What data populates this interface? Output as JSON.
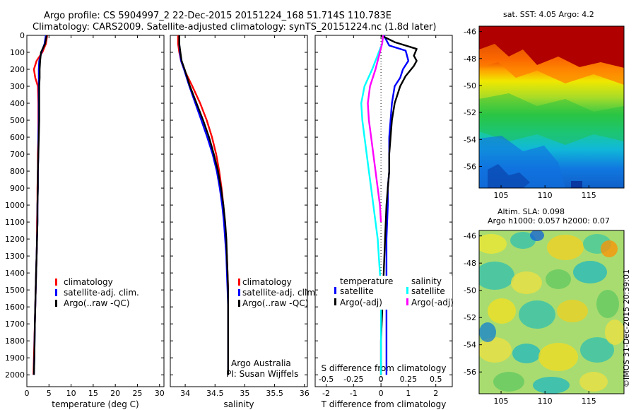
{
  "header": {
    "line1": "Argo profile: CS 5904997_2 22-Dec-2015 20151224_168 51.714S 110.783E",
    "line2": "Climatology: CARS2009. Satellite-adjusted climatology: synTS_20151224.nc (1.8d later)"
  },
  "legends": {
    "temperature": [
      "climatology",
      "satellite-adj. clim.",
      "Argo(..raw -QC)"
    ],
    "salinity": [
      "climatology",
      "satellite-adj. clim.",
      "Argo(..raw -QC)"
    ],
    "diff_temp_title": "temperature",
    "diff_sal_title": "salinity",
    "diff_temp_items": [
      "satellite",
      "Argo(-adj)"
    ],
    "diff_sal_items": [
      "satellite",
      "Argo(-adj)"
    ]
  },
  "credits": {
    "org": "Argo Australia",
    "pi": "PI: Susan Wijffels",
    "stamp": "©IMOS 31-Dec-2015 20:39:01"
  },
  "colors": {
    "climatology": "#ff0000",
    "satellite": "#0000ff",
    "argo": "#000000",
    "sal_satellite": "#00ffff",
    "sal_argo": "#ff00ff"
  },
  "chart_data": [
    {
      "type": "line",
      "panel": "temperature",
      "xlabel": "temperature (deg C)",
      "ylabel": "",
      "xlim": [
        0,
        31
      ],
      "ylim": [
        2070,
        0
      ],
      "xticks": [
        0,
        5,
        10,
        15,
        20,
        25,
        30
      ],
      "yticks": [
        0,
        100,
        200,
        300,
        400,
        500,
        600,
        700,
        800,
        900,
        1000,
        1100,
        1200,
        1300,
        1400,
        1500,
        1600,
        1700,
        1800,
        1900,
        2000
      ],
      "series": [
        {
          "name": "climatology",
          "color": "#ff0000",
          "x": [
            4.6,
            4.3,
            3.5,
            2.2,
            1.6,
            1.9,
            2.5,
            2.6,
            2.6,
            2.6,
            2.5,
            2.5,
            2.4,
            2.4,
            2.3,
            2.3,
            2.2,
            2.1,
            2.0,
            1.9,
            1.8,
            1.6,
            1.5
          ],
          "y": [
            0,
            50,
            100,
            150,
            200,
            250,
            300,
            400,
            500,
            600,
            700,
            800,
            900,
            1000,
            1100,
            1200,
            1300,
            1400,
            1500,
            1600,
            1700,
            1900,
            2000
          ]
        },
        {
          "name": "satellite-adj. clim.",
          "color": "#0000ff",
          "x": [
            4.3,
            4.0,
            3.3,
            2.8,
            2.7,
            2.7,
            2.7,
            2.7,
            2.7,
            2.6,
            2.6,
            2.5,
            2.5,
            2.4,
            2.4,
            2.3,
            2.2,
            2.1,
            2.0,
            1.9,
            1.8,
            1.7,
            1.6
          ],
          "y": [
            0,
            50,
            100,
            150,
            200,
            250,
            300,
            400,
            500,
            600,
            700,
            800,
            900,
            1000,
            1100,
            1200,
            1300,
            1400,
            1500,
            1600,
            1700,
            1900,
            2000
          ]
        },
        {
          "name": "Argo(..raw -QC)",
          "color": "#000000",
          "x": [
            4.5,
            4.1,
            3.2,
            3.0,
            2.9,
            2.9,
            2.8,
            2.8,
            2.8,
            2.7,
            2.6,
            2.5,
            2.5,
            2.4,
            2.4,
            2.3,
            2.2,
            2.1,
            2.0,
            1.9,
            1.8,
            1.7,
            1.6
          ],
          "y": [
            0,
            50,
            100,
            150,
            200,
            250,
            300,
            400,
            500,
            600,
            700,
            800,
            900,
            1000,
            1100,
            1200,
            1300,
            1400,
            1500,
            1600,
            1700,
            1900,
            2000
          ]
        }
      ]
    },
    {
      "type": "line",
      "panel": "salinity",
      "xlabel": "salinity",
      "ylabel": "",
      "xlim": [
        33.75,
        36.05
      ],
      "ylim": [
        2070,
        0
      ],
      "xticks": [
        34,
        34.5,
        35,
        35.5,
        36
      ],
      "series": [
        {
          "name": "climatology",
          "color": "#ff0000",
          "x": [
            33.88,
            33.88,
            33.9,
            33.93,
            33.98,
            34.12,
            34.25,
            34.36,
            34.45,
            34.52,
            34.57,
            34.61,
            34.64,
            34.66,
            34.68,
            34.7,
            34.71,
            34.72,
            34.72,
            34.72,
            34.72,
            34.72
          ],
          "y": [
            0,
            50,
            100,
            150,
            200,
            300,
            400,
            500,
            600,
            700,
            800,
            900,
            1000,
            1100,
            1200,
            1300,
            1400,
            1500,
            1600,
            1700,
            1900,
            2000
          ]
        },
        {
          "name": "satellite-adj. clim.",
          "color": "#0000ff",
          "x": [
            33.9,
            33.9,
            33.91,
            33.93,
            33.98,
            34.07,
            34.17,
            34.27,
            34.37,
            34.46,
            34.53,
            34.58,
            34.62,
            34.65,
            34.67,
            34.69,
            34.7,
            34.71,
            34.72,
            34.72,
            34.72,
            34.72
          ],
          "y": [
            0,
            50,
            100,
            150,
            200,
            300,
            400,
            500,
            600,
            700,
            800,
            900,
            1000,
            1100,
            1200,
            1300,
            1400,
            1500,
            1600,
            1700,
            1900,
            2000
          ]
        },
        {
          "name": "Argo(..raw -QC)",
          "color": "#000000",
          "x": [
            33.9,
            33.9,
            33.92,
            33.94,
            33.99,
            34.08,
            34.19,
            34.3,
            34.4,
            34.48,
            34.55,
            34.6,
            34.64,
            34.67,
            34.69,
            34.7,
            34.71,
            34.72,
            34.72,
            34.72,
            34.72,
            34.72
          ],
          "y": [
            0,
            50,
            100,
            150,
            200,
            300,
            400,
            500,
            600,
            700,
            800,
            900,
            1000,
            1100,
            1200,
            1300,
            1400,
            1500,
            1600,
            1700,
            1900,
            2000
          ]
        }
      ]
    },
    {
      "type": "line",
      "panel": "difference",
      "xlabel": "T difference from climatology",
      "top_xlabel": "S difference from climatology",
      "xlim": [
        -2.4,
        2.6
      ],
      "ylim": [
        2070,
        0
      ],
      "xticks": [
        -2,
        -1,
        0,
        1,
        2
      ],
      "top_xticks": [
        -0.5,
        -0.25,
        0,
        0.25,
        0.5
      ],
      "top_xlim": [
        -0.6,
        0.65
      ],
      "series": [
        {
          "name": "temperature satellite",
          "color": "#0000ff",
          "x": [
            0.1,
            0.2,
            0.3,
            0.9,
            1.0,
            0.8,
            0.7,
            0.5,
            0.4,
            0.35,
            0.3,
            0.3,
            0.3,
            0.25,
            0.25,
            0.2,
            0.2,
            0.2,
            0.2,
            0.2,
            0.2
          ],
          "y": [
            0,
            30,
            60,
            90,
            150,
            200,
            250,
            300,
            400,
            500,
            600,
            700,
            800,
            900,
            1000,
            1200,
            1400,
            1600,
            1800,
            1900,
            2000
          ]
        },
        {
          "name": "temperature Argo(-adj)",
          "color": "#000000",
          "x": [
            0.0,
            0.5,
            1.3,
            1.2,
            1.3,
            1.2,
            0.9,
            0.7,
            0.5,
            0.4,
            0.35,
            0.3,
            0.3,
            0.25,
            0.2,
            0.15,
            0.1,
            0.05,
            0.0,
            0.0,
            0.0
          ],
          "y": [
            0,
            40,
            80,
            120,
            150,
            180,
            240,
            300,
            400,
            500,
            600,
            700,
            800,
            900,
            1000,
            1200,
            1400,
            1600,
            1800,
            1900,
            2000
          ]
        },
        {
          "name": "salinity satellite",
          "color": "#00ffff",
          "x": [
            0.02,
            0.01,
            -0.02,
            -0.08,
            -0.15,
            -0.18,
            -0.17,
            -0.15,
            -0.13,
            -0.11,
            -0.09,
            -0.07,
            -0.05,
            -0.03,
            -0.02,
            -0.01,
            0.0,
            0.0,
            0.0,
            0.0
          ],
          "y": [
            0,
            50,
            100,
            200,
            300,
            400,
            500,
            600,
            700,
            800,
            900,
            1000,
            1100,
            1200,
            1300,
            1400,
            1500,
            1700,
            1900,
            2000
          ]
        },
        {
          "name": "salinity Argo(-adj)",
          "color": "#ff00ff",
          "x": [
            0.02,
            0.01,
            -0.01,
            -0.05,
            -0.1,
            -0.12,
            -0.11,
            -0.09,
            -0.07,
            -0.05,
            -0.03,
            -0.01,
            0.0
          ],
          "y": [
            0,
            50,
            100,
            200,
            300,
            400,
            500,
            600,
            700,
            800,
            900,
            1000,
            1100
          ]
        }
      ]
    },
    {
      "type": "heatmap",
      "panel": "sst_map",
      "title": "sat. SST: 4.05 Argo: 4.2",
      "xticks": [
        105,
        110,
        115
      ],
      "yticks": [
        -46,
        -48,
        -50,
        -52,
        -54,
        -56
      ],
      "xlim": [
        102.5,
        119
      ],
      "ylim": [
        -57.6,
        -45.6
      ]
    },
    {
      "type": "heatmap",
      "panel": "sla_map",
      "title": "Altim. SLA: 0.098",
      "subtitle": "Argo h1000: 0.057 h2000: 0.07",
      "xticks": [
        105,
        110,
        115
      ],
      "yticks": [
        -46,
        -48,
        -50,
        -52,
        -54,
        -56
      ],
      "xlim": [
        102.5,
        119
      ],
      "ylim": [
        -57.6,
        -45.6
      ]
    }
  ]
}
